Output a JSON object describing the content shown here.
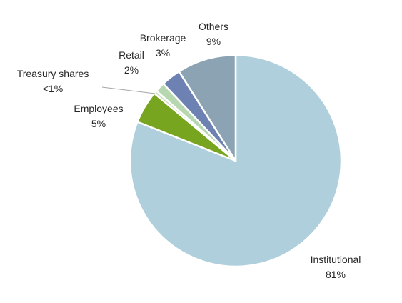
{
  "chart_data": {
    "type": "pie",
    "title": "",
    "legend": "none",
    "slices": [
      {
        "label": "Institutional",
        "value": 81,
        "value_label": "81%",
        "color": "#aecfdb"
      },
      {
        "label": "Employees",
        "value": 5,
        "value_label": "5%",
        "color": "#77a51f"
      },
      {
        "label": "Treasury shares",
        "value": 0.5,
        "value_label": "<1%",
        "color": "#d2dfc6"
      },
      {
        "label": "Retail",
        "value": 1.5,
        "value_label": "2%",
        "color": "#b6d7b0"
      },
      {
        "label": "Brokerage",
        "value": 3,
        "value_label": "3%",
        "color": "#6d82b3"
      },
      {
        "label": "Others",
        "value": 9,
        "value_label": "9%",
        "color": "#8ba3b2"
      }
    ]
  }
}
